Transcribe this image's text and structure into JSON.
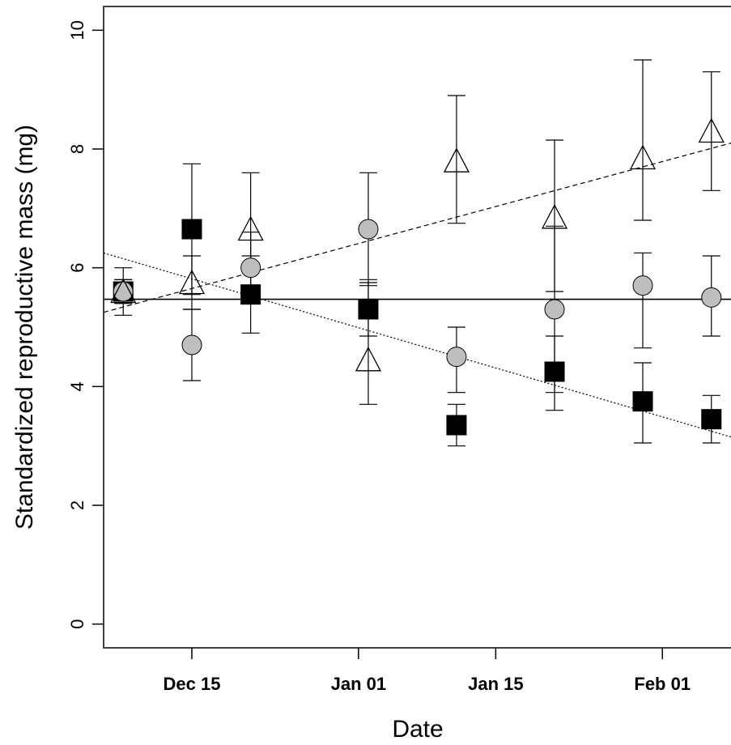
{
  "chart_data": {
    "type": "scatter",
    "title": "",
    "xlabel": "Date",
    "ylabel": "Standardized reproductive mass (mg)",
    "xlim": [
      "2013-12-06",
      "2014-02-08"
    ],
    "ylim": [
      -0.4,
      10.4
    ],
    "x_ticks": [
      {
        "date": "2013-12-15",
        "label": "Dec 15"
      },
      {
        "date": "2014-01-01",
        "label": "Jan 01"
      },
      {
        "date": "2014-01-15",
        "label": "Jan 15"
      },
      {
        "date": "2014-02-01",
        "label": "Feb 01"
      }
    ],
    "y_ticks": [
      0,
      2,
      4,
      6,
      8,
      10
    ],
    "grid": false,
    "legend": "none",
    "series": [
      {
        "marker": "triangle-open",
        "color": "#000000",
        "points": [
          {
            "x": "2013-12-08",
            "y": 5.6,
            "lo": 5.4,
            "hi": 5.8
          },
          {
            "x": "2013-12-15",
            "y": 5.75,
            "lo": 5.3,
            "hi": 6.2
          },
          {
            "x": "2013-12-21",
            "y": 6.65,
            "lo": 5.7,
            "hi": 7.6
          },
          {
            "x": "2014-01-02",
            "y": 4.45,
            "lo": 3.7,
            "hi": 5.8
          },
          {
            "x": "2014-01-11",
            "y": 7.8,
            "lo": 6.75,
            "hi": 8.9
          },
          {
            "x": "2014-01-21",
            "y": 6.85,
            "lo": 5.6,
            "hi": 8.15
          },
          {
            "x": "2014-01-30",
            "y": 7.85,
            "lo": 6.8,
            "hi": 9.5
          },
          {
            "x": "2014-02-06",
            "y": 8.3,
            "lo": 7.3,
            "hi": 9.3
          }
        ]
      },
      {
        "marker": "circle-filled",
        "color": "#bebebe",
        "points": [
          {
            "x": "2013-12-08",
            "y": 5.6,
            "lo": 5.2,
            "hi": 6.0
          },
          {
            "x": "2013-12-15",
            "y": 4.7,
            "lo": 4.1,
            "hi": 5.3
          },
          {
            "x": "2013-12-21",
            "y": 6.0,
            "lo": 5.4,
            "hi": 6.6
          },
          {
            "x": "2014-01-02",
            "y": 6.65,
            "lo": 5.7,
            "hi": 7.6
          },
          {
            "x": "2014-01-11",
            "y": 4.5,
            "lo": 3.9,
            "hi": 5.0
          },
          {
            "x": "2014-01-21",
            "y": 5.3,
            "lo": 3.9,
            "hi": 6.7
          },
          {
            "x": "2014-01-30",
            "y": 5.7,
            "lo": 4.65,
            "hi": 6.25
          },
          {
            "x": "2014-02-06",
            "y": 5.5,
            "lo": 4.85,
            "hi": 6.2
          }
        ]
      },
      {
        "marker": "square-filled",
        "color": "#000000",
        "points": [
          {
            "x": "2013-12-08",
            "y": 5.6,
            "lo": 5.4,
            "hi": 5.8
          },
          {
            "x": "2013-12-15",
            "y": 6.65,
            "lo": 5.55,
            "hi": 7.75
          },
          {
            "x": "2013-12-21",
            "y": 5.55,
            "lo": 4.9,
            "hi": 6.2
          },
          {
            "x": "2014-01-02",
            "y": 5.3,
            "lo": 4.85,
            "hi": 5.75
          },
          {
            "x": "2014-01-11",
            "y": 3.35,
            "lo": 3.0,
            "hi": 3.7
          },
          {
            "x": "2014-01-21",
            "y": 4.25,
            "lo": 3.6,
            "hi": 4.85
          },
          {
            "x": "2014-01-30",
            "y": 3.75,
            "lo": 3.05,
            "hi": 4.4
          },
          {
            "x": "2014-02-06",
            "y": 3.45,
            "lo": 3.05,
            "hi": 3.85
          }
        ]
      }
    ],
    "trend_lines": [
      {
        "style": "dashed",
        "from": {
          "x": "2013-12-06",
          "y": 5.25
        },
        "to": {
          "x": "2014-02-08",
          "y": 8.1
        }
      },
      {
        "style": "solid",
        "from": {
          "x": "2013-12-06",
          "y": 5.47
        },
        "to": {
          "x": "2014-02-08",
          "y": 5.47
        }
      },
      {
        "style": "dotted",
        "from": {
          "x": "2013-12-06",
          "y": 6.25
        },
        "to": {
          "x": "2014-02-08",
          "y": 3.15
        }
      }
    ]
  }
}
